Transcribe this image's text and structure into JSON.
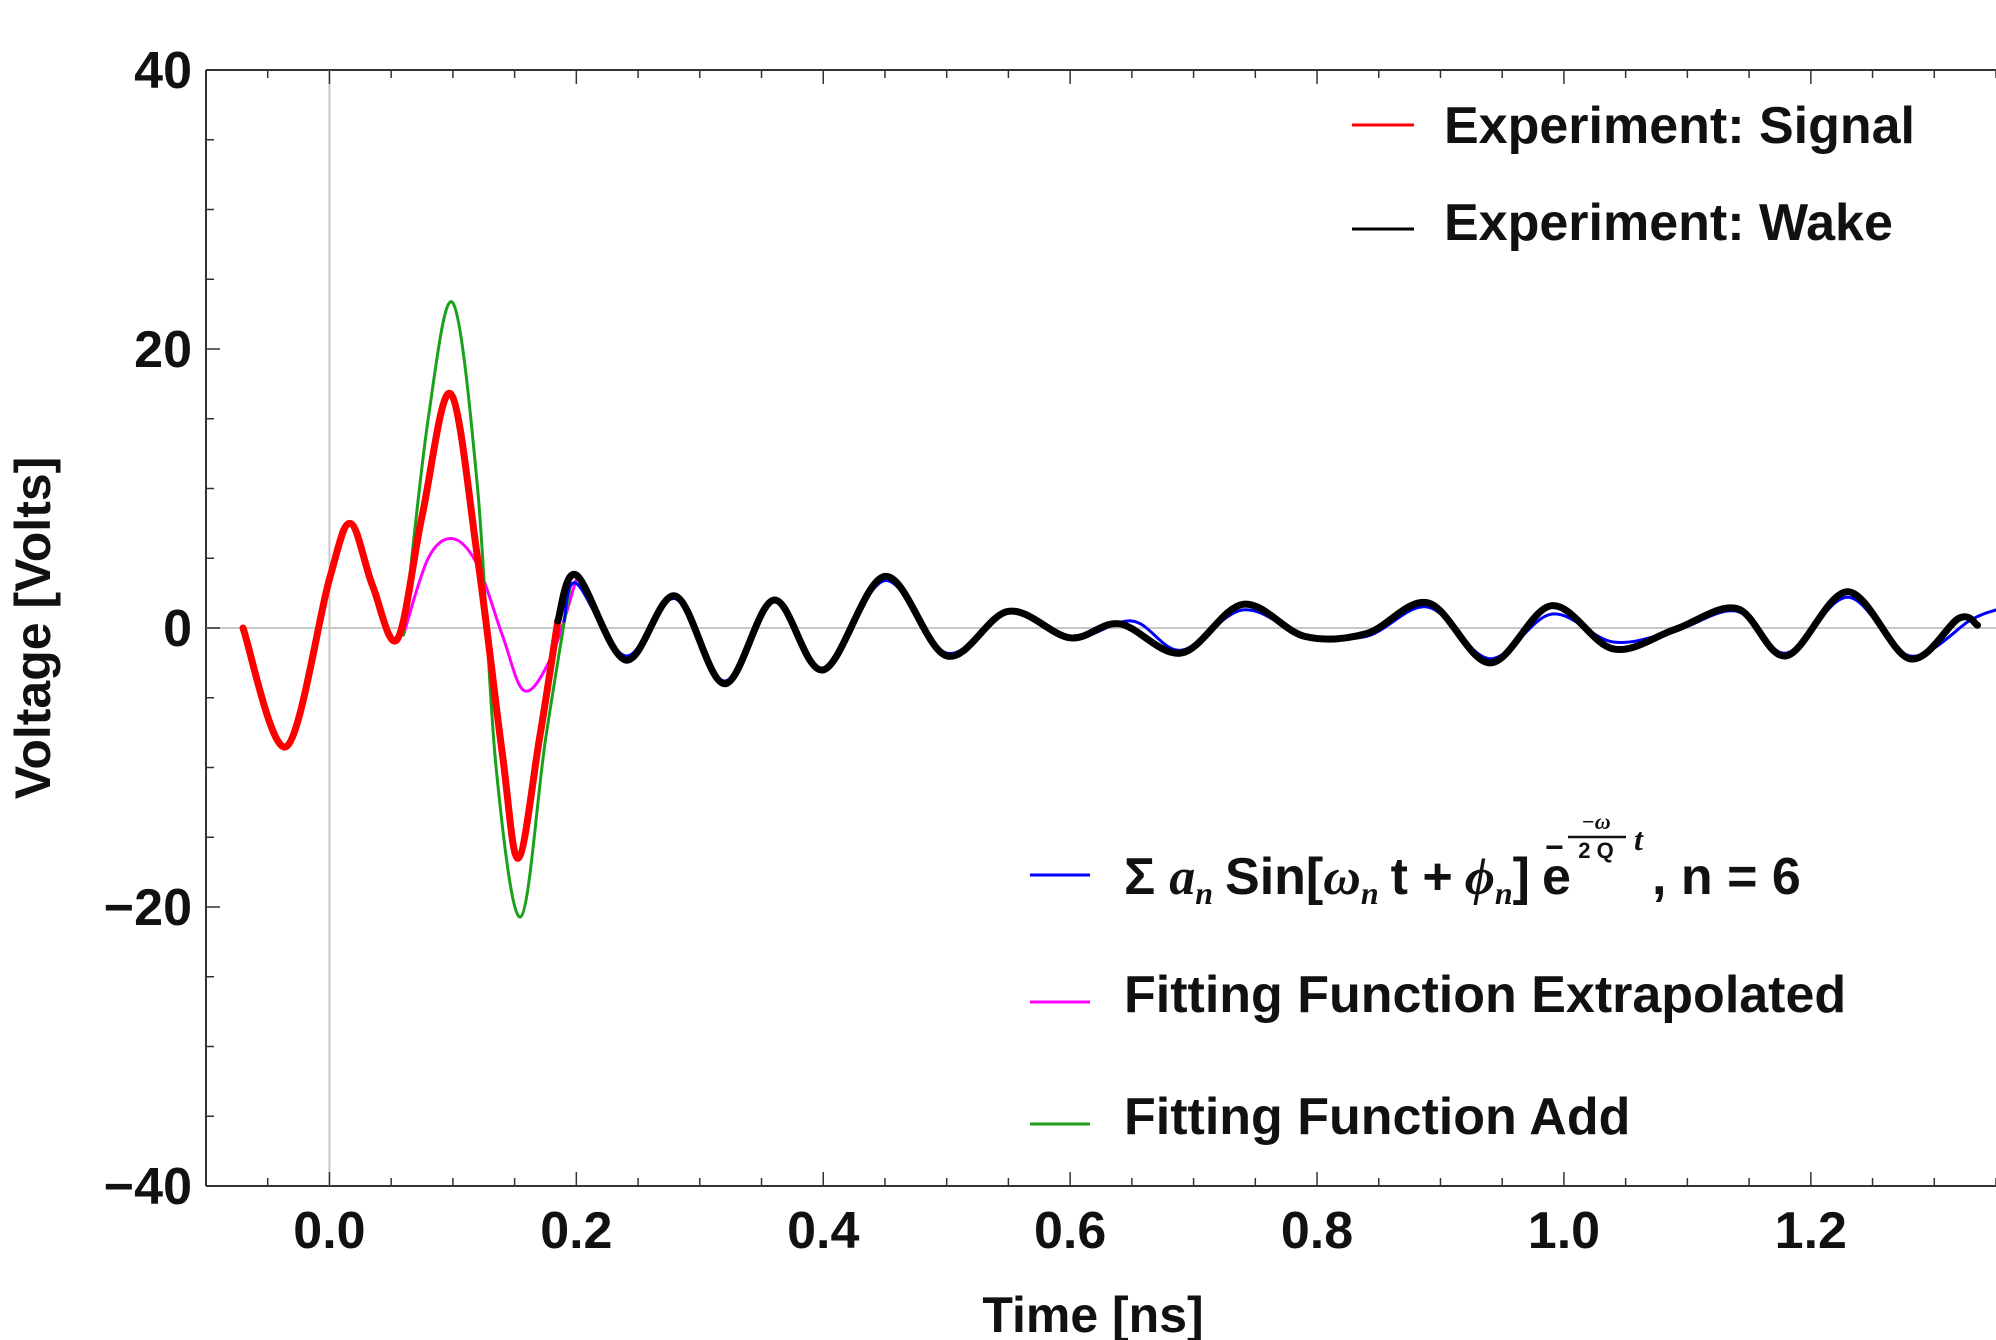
{
  "chart_data": {
    "type": "line",
    "title": "",
    "xlabel": "Time [ns]",
    "ylabel": "Voltage [Volts]",
    "xlim": [
      -0.1,
      1.35
    ],
    "ylim": [
      -40,
      40
    ],
    "x_ticks": [
      {
        "value": 0.0,
        "label": "0.0"
      },
      {
        "value": 0.2,
        "label": "0.2"
      },
      {
        "value": 0.4,
        "label": "0.4"
      },
      {
        "value": 0.6,
        "label": "0.6"
      },
      {
        "value": 0.8,
        "label": "0.8"
      },
      {
        "value": 1.0,
        "label": "1.0"
      },
      {
        "value": 1.2,
        "label": "1.2"
      }
    ],
    "y_ticks": [
      {
        "value": 40,
        "label": "40"
      },
      {
        "value": 20,
        "label": "20"
      },
      {
        "value": 0,
        "label": "0"
      },
      {
        "value": -20,
        "label": "−20"
      },
      {
        "value": -40,
        "label": "−40"
      }
    ],
    "grid": false,
    "series": [
      {
        "name": "Fitting Function Extrapolated",
        "color": "#ff00ff",
        "x": [
          0.06,
          0.08,
          0.1,
          0.12,
          0.14,
          0.158,
          0.18,
          0.2
        ],
        "y": [
          -0.5,
          5.0,
          6.4,
          4.5,
          -0.5,
          -4.5,
          -2.0,
          3.5
        ]
      },
      {
        "name": "Fitting Function Add",
        "color": "#1aa01a",
        "x": [
          0.06,
          0.08,
          0.1,
          0.12,
          0.135,
          0.155,
          0.175,
          0.195
        ],
        "y": [
          -0.5,
          15.0,
          23.3,
          10.0,
          -10.0,
          -20.7,
          -8.0,
          3.0
        ]
      },
      {
        "name": "Σ a_n Sin[ω_n t + ϕ_n] e^(-ω_n/(2 Q_n) t), n = 6",
        "color": "#0000ff",
        "x": [
          0.19,
          0.2,
          0.24,
          0.28,
          0.32,
          0.36,
          0.4,
          0.45,
          0.5,
          0.55,
          0.6,
          0.65,
          0.69,
          0.74,
          0.79,
          0.84,
          0.89,
          0.94,
          0.99,
          1.04,
          1.09,
          1.14,
          1.18,
          1.23,
          1.28,
          1.33,
          1.35
        ],
        "y": [
          0.5,
          3.2,
          -2.0,
          2.1,
          -3.8,
          1.9,
          -2.9,
          3.4,
          -1.8,
          1.1,
          -0.8,
          0.5,
          -1.6,
          1.3,
          -0.5,
          -0.6,
          1.5,
          -2.2,
          1.0,
          -1.0,
          -0.2,
          1.2,
          -1.8,
          2.2,
          -2.0,
          0.6,
          1.3
        ]
      },
      {
        "name": "Experiment: Signal",
        "color": "#ff0000",
        "x": [
          -0.07,
          -0.035,
          0.0,
          0.017,
          0.035,
          0.055,
          0.075,
          0.098,
          0.12,
          0.14,
          0.153,
          0.17,
          0.185
        ],
        "y": [
          0.0,
          -8.5,
          3.5,
          7.5,
          3.0,
          -0.8,
          8.0,
          16.8,
          5.0,
          -9.0,
          -16.5,
          -8.0,
          0.5
        ]
      },
      {
        "name": "Experiment: Wake",
        "color": "#000000",
        "x": [
          0.185,
          0.2,
          0.24,
          0.28,
          0.32,
          0.36,
          0.4,
          0.45,
          0.5,
          0.55,
          0.6,
          0.64,
          0.69,
          0.74,
          0.79,
          0.84,
          0.89,
          0.94,
          0.99,
          1.04,
          1.09,
          1.14,
          1.18,
          1.23,
          1.28,
          1.32,
          1.335
        ],
        "y": [
          0.5,
          3.8,
          -2.3,
          2.3,
          -4.0,
          2.0,
          -3.0,
          3.7,
          -2.0,
          1.2,
          -0.7,
          0.3,
          -1.8,
          1.7,
          -0.6,
          -0.4,
          1.8,
          -2.5,
          1.6,
          -1.5,
          -0.1,
          1.4,
          -2.0,
          2.6,
          -2.2,
          0.7,
          0.2
        ]
      }
    ],
    "legend": [
      {
        "placement": "top-right",
        "entries": [
          "Experiment: Signal",
          "Experiment: Wake"
        ]
      },
      {
        "placement": "bottom-right",
        "entries": [
          "Σ a_n Sin[ω_n t + ϕ_n] e^(-ω_n/(2 Q_n) t), n = 6",
          "Fitting Function Extrapolated",
          "Fitting Function Add"
        ]
      }
    ]
  },
  "legend_text": {
    "signal": "Experiment: Signal",
    "wake": "Experiment: Wake",
    "extrapolated": "Fitting Function Extrapolated",
    "add": "Fitting Function Add",
    "formula": {
      "sigma": "Σ",
      "a": "a",
      "n": "n",
      "sin_open": "Sin[",
      "omega": "ω",
      "t_plus": "t +",
      "phi": "ϕ",
      "close": "]",
      "e": "e",
      "minus": "−",
      "frac_num": "−ω",
      "frac_den": "2 Q",
      "t": "t",
      "tail": ", n = 6"
    }
  },
  "colors": {
    "signal": "#ff0000",
    "wake": "#000000",
    "fit": "#0000ff",
    "extrapolated": "#ff00ff",
    "add": "#1aa01a",
    "zero_line": "#c8c8c8",
    "axis": "#333333"
  }
}
